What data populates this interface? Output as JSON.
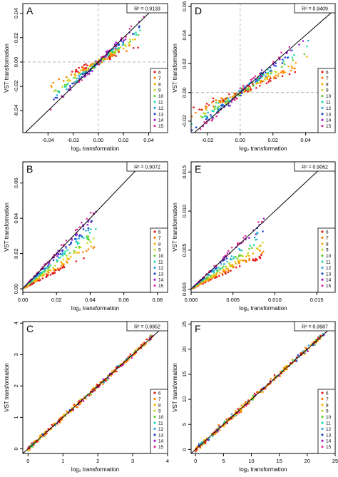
{
  "figure": {
    "legend_levels": [
      "6",
      "7",
      "8",
      "9",
      "10",
      "11",
      "12",
      "13",
      "14",
      "15"
    ],
    "colors": [
      "#e41a1c",
      "#ff7f00",
      "#ffb000",
      "#c8dc2e",
      "#66cc33",
      "#22ddaa",
      "#33aadd",
      "#2244cc",
      "#9922cc",
      "#dd3399"
    ],
    "panels": [
      {
        "letter": "A",
        "r2": "R² = 0.9133",
        "xlabel": "log₂ transformation",
        "ylabel": "VST transformation",
        "xlim": [
          -0.06,
          0.055
        ],
        "ylim": [
          -0.058,
          0.048
        ],
        "xticks": [
          -0.04,
          -0.02,
          0.0,
          0.02,
          0.04
        ],
        "xticklabels": [
          "-0.04",
          "-0.02",
          "0.00",
          "0.02",
          "0.04"
        ],
        "yticks": [
          -0.04,
          -0.02,
          0.0,
          0.02,
          0.04
        ],
        "yticklabels": [
          "-0.04",
          "-0.02",
          "0.00",
          "0.02",
          "0.04"
        ],
        "refline": true,
        "kind": "center",
        "scale": 0.04
      },
      {
        "letter": "D",
        "r2": "R² = 0.9409",
        "xlabel": "log₂ transformation",
        "ylabel": "VST transformation",
        "xlim": [
          -0.03,
          0.058
        ],
        "ylim": [
          -0.028,
          0.062
        ],
        "xticks": [
          -0.02,
          0.0,
          0.02,
          0.04
        ],
        "xticklabels": [
          "-0.02",
          "0.00",
          "0.02",
          "0.04"
        ],
        "yticks": [
          -0.02,
          0.0,
          0.02,
          0.04,
          0.06
        ],
        "yticklabels": [
          "-0.02",
          "0.00",
          "0.02",
          "0.04",
          "0.06"
        ],
        "refline": true,
        "kind": "center",
        "scale": 0.045
      },
      {
        "letter": "B",
        "r2": "R² = 0.9072",
        "xlabel": "log₂ transformation",
        "ylabel": "VST transformation",
        "xlim": [
          0.0,
          0.086
        ],
        "ylim": [
          -0.002,
          0.072
        ],
        "xticks": [
          0.0,
          0.02,
          0.04,
          0.06,
          0.08
        ],
        "xticklabels": [
          "0.00",
          "0.02",
          "0.04",
          "0.06",
          "0.08"
        ],
        "yticks": [
          0.0,
          0.02,
          0.04,
          0.06
        ],
        "yticklabels": [
          "0.00",
          "0.02",
          "0.04",
          "0.06"
        ],
        "refline": false,
        "kind": "fan",
        "scale": 0.05
      },
      {
        "letter": "E",
        "r2": "R² = 0.9062",
        "xlabel": "log₂ transformation",
        "ylabel": "VST transformation",
        "xlim": [
          0.0,
          0.0172
        ],
        "ylim": [
          -0.0004,
          0.0163
        ],
        "xticks": [
          0.0,
          0.005,
          0.01,
          0.015
        ],
        "xticklabels": [
          "0.000",
          "0.005",
          "0.010",
          "0.015"
        ],
        "yticks": [
          0.0,
          0.005,
          0.01,
          0.015
        ],
        "yticklabels": [
          "0.000",
          "0.005",
          "0.010",
          "0.015"
        ],
        "refline": false,
        "kind": "fan",
        "scale": 0.01
      },
      {
        "letter": "C",
        "r2": "R² = 0.9952",
        "xlabel": "log₂ transformation",
        "ylabel": "VST transformation",
        "xlim": [
          -0.15,
          4.0
        ],
        "ylim": [
          -0.15,
          4.05
        ],
        "xticks": [
          0,
          1,
          2,
          3,
          4
        ],
        "xticklabels": [
          "0",
          "1",
          "2",
          "3",
          "4"
        ],
        "yticks": [
          0,
          1,
          2,
          3,
          4
        ],
        "yticklabels": [
          "0",
          "1",
          "2",
          "3",
          "4"
        ],
        "refline": false,
        "kind": "tight",
        "scale": 3.6
      },
      {
        "letter": "F",
        "r2": "R² = 0.9987",
        "xlabel": "log₂ transformation",
        "ylabel": "VST transformation",
        "xlim": [
          -0.8,
          25.0
        ],
        "ylim": [
          -0.8,
          25.5
        ],
        "xticks": [
          0,
          5,
          10,
          15,
          20,
          25
        ],
        "xticklabels": [
          "0",
          "5",
          "10",
          "15",
          "20",
          "25"
        ],
        "yticks": [
          0,
          5,
          10,
          15,
          20,
          25
        ],
        "yticklabels": [
          "0",
          "5",
          "10",
          "15",
          "20",
          "25"
        ],
        "refline": false,
        "kind": "tight",
        "scale": 23
      }
    ]
  },
  "chart_data": [
    {
      "type": "scatter",
      "panel": "A",
      "r2": "R² = 0.9133",
      "xlabel": "log₂ transformation",
      "ylabel": "VST transformation",
      "xlim": [
        -0.06,
        0.055
      ],
      "ylim": [
        -0.058,
        0.048
      ],
      "legend": [
        "6",
        "7",
        "8",
        "9",
        "10",
        "11",
        "12",
        "13",
        "14",
        "15"
      ],
      "legend_position": "bottom-right",
      "reference_lines": "dashed x=0 and y=0",
      "diagonal": "y = x"
    },
    {
      "type": "scatter",
      "panel": "D",
      "r2": "R² = 0.9409",
      "xlabel": "log₂ transformation",
      "ylabel": "VST transformation",
      "xlim": [
        -0.03,
        0.058
      ],
      "ylim": [
        -0.028,
        0.062
      ],
      "legend": [
        "6",
        "7",
        "8",
        "9",
        "10",
        "11",
        "12",
        "13",
        "14",
        "15"
      ],
      "legend_position": "bottom-right",
      "reference_lines": "dashed x=0 and y=0",
      "diagonal": "y = x"
    },
    {
      "type": "scatter",
      "panel": "B",
      "r2": "R² = 0.9072",
      "xlabel": "log₂ transformation",
      "ylabel": "VST transformation",
      "xlim": [
        0,
        0.086
      ],
      "ylim": [
        -0.002,
        0.072
      ],
      "legend": [
        "6",
        "7",
        "8",
        "9",
        "10",
        "11",
        "12",
        "13",
        "14",
        "15"
      ],
      "legend_position": "bottom-right",
      "diagonal": "y = x"
    },
    {
      "type": "scatter",
      "panel": "E",
      "r2": "R² = 0.9062",
      "xlabel": "log₂ transformation",
      "ylabel": "VST transformation",
      "xlim": [
        0,
        0.0172
      ],
      "ylim": [
        -0.0004,
        0.0163
      ],
      "legend": [
        "6",
        "7",
        "8",
        "9",
        "10",
        "11",
        "12",
        "13",
        "14",
        "15"
      ],
      "legend_position": "bottom-right",
      "diagonal": "y = x"
    },
    {
      "type": "scatter",
      "panel": "C",
      "r2": "R² = 0.9952",
      "xlabel": "log₂ transformation",
      "ylabel": "VST transformation",
      "xlim": [
        -0.15,
        4.0
      ],
      "ylim": [
        -0.15,
        4.05
      ],
      "legend": [
        "6",
        "7",
        "8",
        "9",
        "10",
        "11",
        "12",
        "13",
        "14",
        "15"
      ],
      "legend_position": "bottom-right",
      "diagonal": "y = x"
    },
    {
      "type": "scatter",
      "panel": "F",
      "r2": "R² = 0.9987",
      "xlabel": "log₂ transformation",
      "ylabel": "VST transformation",
      "xlim": [
        -0.8,
        25.0
      ],
      "ylim": [
        -0.8,
        25.5
      ],
      "legend": [
        "6",
        "7",
        "8",
        "9",
        "10",
        "11",
        "12",
        "13",
        "14",
        "15"
      ],
      "legend_position": "bottom-right",
      "diagonal": "y = x"
    }
  ]
}
